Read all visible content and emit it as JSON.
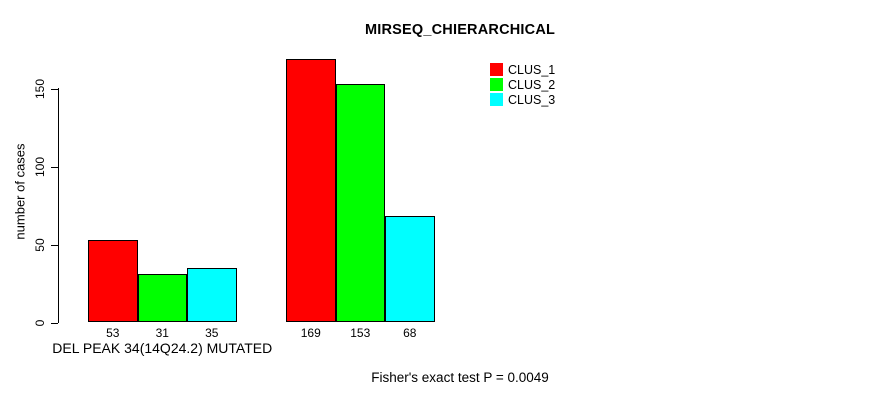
{
  "figure": {
    "title": "MIRSEQ_CHIERARCHICAL",
    "y_axis_label": "number of cases",
    "footer_note": "Fisher's exact test P = 0.0049"
  },
  "chart_data": {
    "type": "bar",
    "title": "MIRSEQ_CHIERARCHICAL",
    "xlabel": "",
    "ylabel": "number of cases",
    "categories": [
      "DEL PEAK 34(14Q24.2) MUTATED",
      ""
    ],
    "series": [
      {
        "name": "CLUS_1",
        "color": "#FF0000",
        "values": [
          53,
          169
        ]
      },
      {
        "name": "CLUS_2",
        "color": "#00FF00",
        "values": [
          31,
          153
        ]
      },
      {
        "name": "CLUS_3",
        "color": "#00FFFF",
        "values": [
          35,
          68
        ]
      }
    ],
    "bar_value_labels": [
      [
        53,
        31,
        35
      ],
      [
        169,
        153,
        68
      ]
    ],
    "yticks": [
      0,
      50,
      100,
      150
    ],
    "ylim": [
      0,
      170
    ],
    "grid": false,
    "legend_position": "top-right",
    "bar_border_color": "#000000",
    "annotation": "Fisher's exact test P = 0.0049"
  }
}
